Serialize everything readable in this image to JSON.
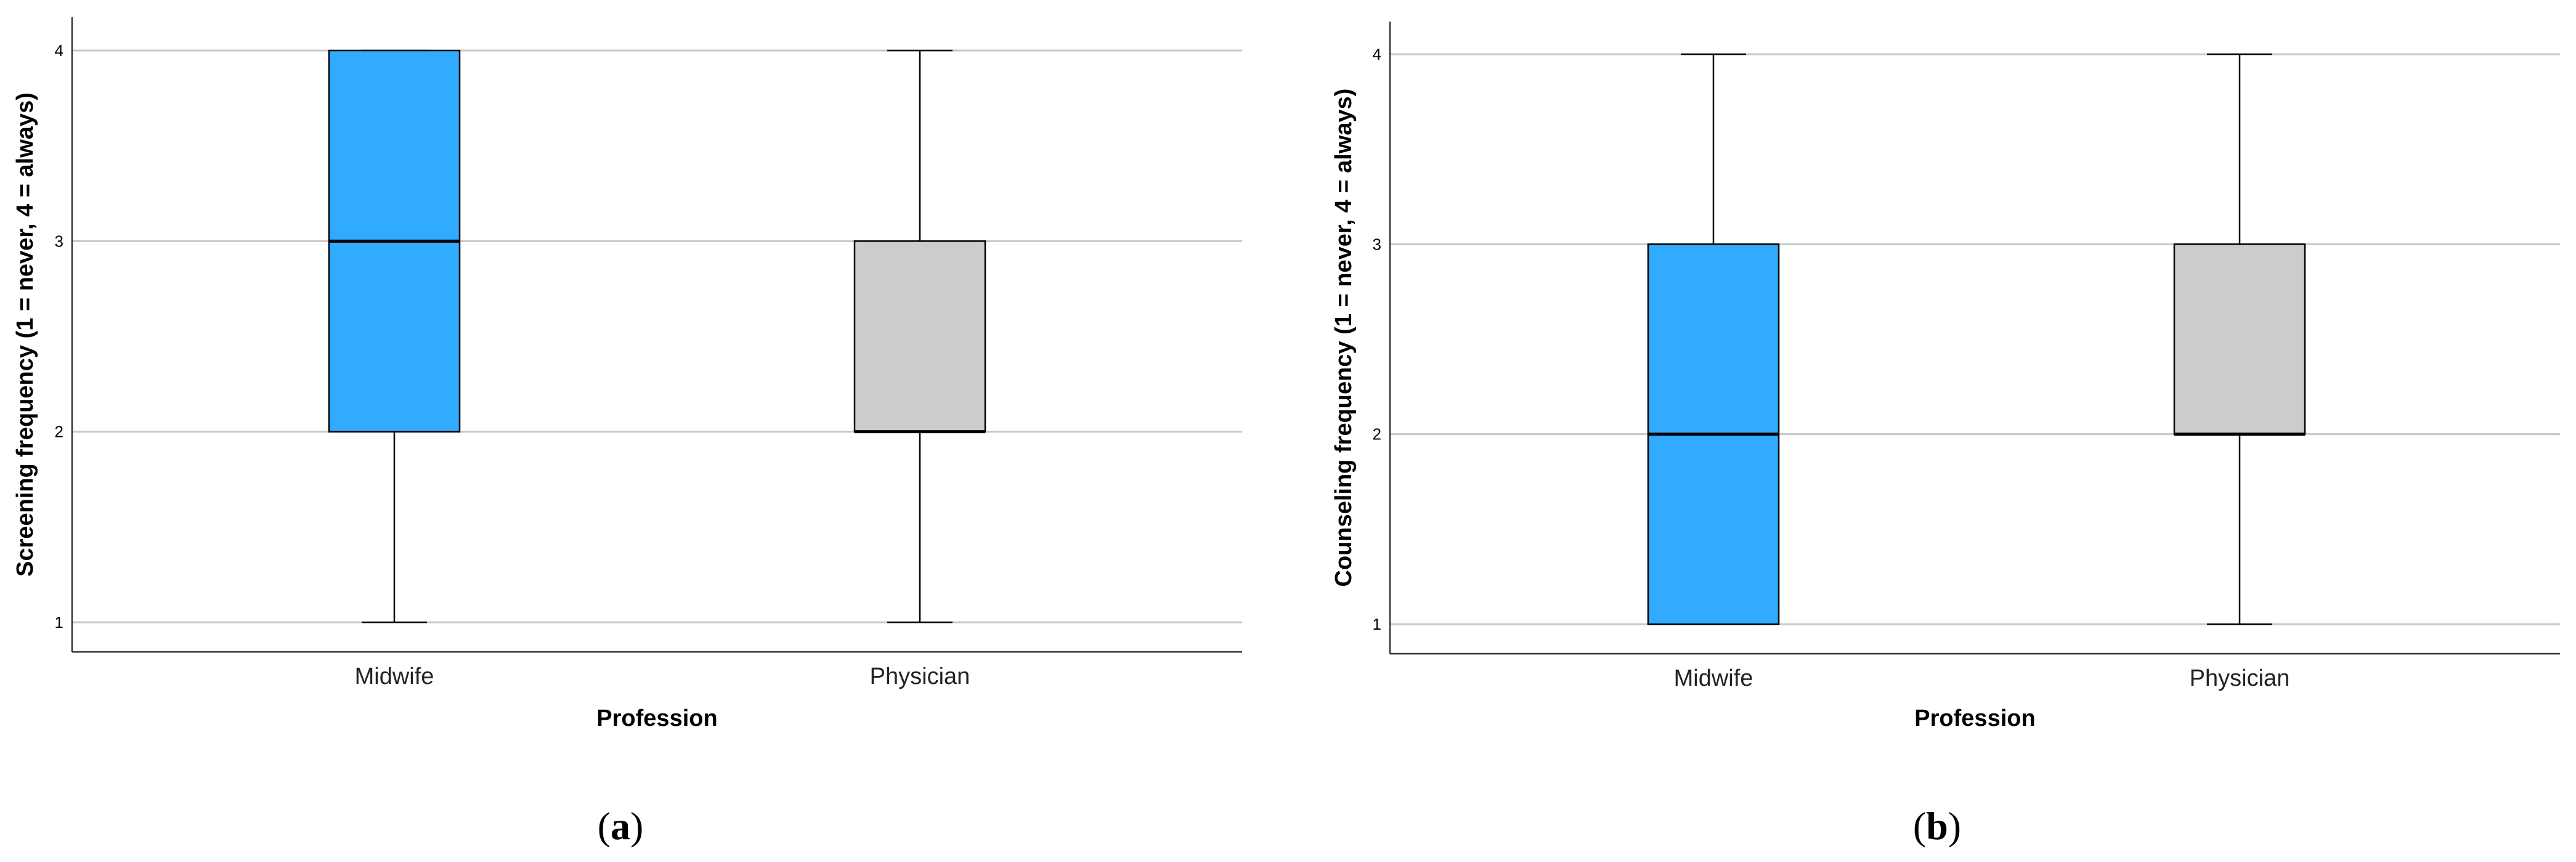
{
  "colors": {
    "midwife": "#30ABFF",
    "physician": "#CCCCCC",
    "grid": "#C8C8C8",
    "stroke": "#000000"
  },
  "chart_data": [
    {
      "type": "box",
      "panel_label": "a",
      "xlabel": "Profession",
      "ylabel": "Screening frequency (1 = never, 4 = always)",
      "yticks": [
        1,
        2,
        3,
        4
      ],
      "ylim": [
        1,
        4
      ],
      "grid": true,
      "categories": [
        "Midwife",
        "Physician"
      ],
      "series": [
        {
          "category": "Midwife",
          "min": 1,
          "q1": 2,
          "median": 3,
          "q3": 4,
          "max": 4,
          "color": "#30ABFF"
        },
        {
          "category": "Physician",
          "min": 1,
          "q1": 2,
          "median": 2,
          "q3": 3,
          "max": 4,
          "color": "#CCCCCC"
        }
      ]
    },
    {
      "type": "box",
      "panel_label": "b",
      "xlabel": "Profession",
      "ylabel": "Counseling frequency (1 = never, 4 = always)",
      "yticks": [
        1,
        2,
        3,
        4
      ],
      "ylim": [
        1,
        4
      ],
      "grid": true,
      "categories": [
        "Midwife",
        "Physician"
      ],
      "series": [
        {
          "category": "Midwife",
          "min": 1,
          "q1": 1,
          "median": 2,
          "q3": 3,
          "max": 4,
          "color": "#30ABFF"
        },
        {
          "category": "Physician",
          "min": 1,
          "q1": 2,
          "median": 2,
          "q3": 3,
          "max": 4,
          "color": "#CCCCCC"
        }
      ]
    }
  ]
}
